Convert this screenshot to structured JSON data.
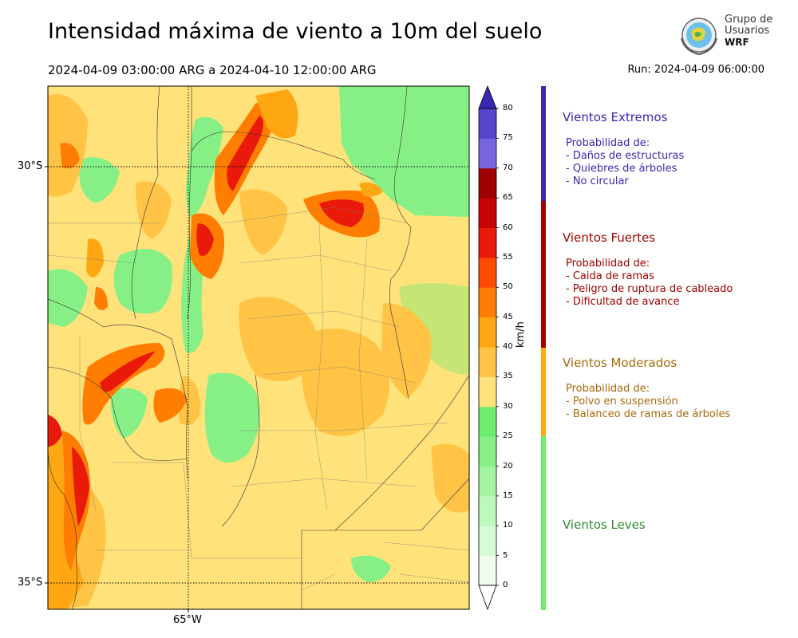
{
  "title": "Intensidad máxima de viento a 10m del suelo",
  "period": "2024-04-09 03:00:00 ARG  a  2024-04-10 12:00:00 ARG",
  "run": "Run: 2024-04-09 06:00:00",
  "logo": {
    "line1": "Grupo de",
    "line2": "Usuarios",
    "line3": "WRF"
  },
  "map": {
    "lat_labels": [
      "30°S",
      "35°S"
    ],
    "lon_labels": [
      "65°W"
    ]
  },
  "colorbar": {
    "unit": "km/h",
    "ticks": [
      "0",
      "5",
      "10",
      "15",
      "20",
      "25",
      "30",
      "35",
      "40",
      "45",
      "50",
      "55",
      "60",
      "65",
      "70",
      "75",
      "80"
    ],
    "colors": [
      "#eefdee",
      "#d6fcd6",
      "#bff8bf",
      "#a2f4a2",
      "#86f086",
      "#6ded6d",
      "#ffe27a",
      "#ffc445",
      "#ffa713",
      "#ff7e02",
      "#ff4a02",
      "#e91a0a",
      "#c70303",
      "#a10000",
      "#7665dd",
      "#5546cc",
      "#4130bb"
    ],
    "top_color": "#3a28b0"
  },
  "categories": [
    {
      "title": "Vientos Extremos",
      "color": "#3a28b0",
      "text_color": "#3a28b0",
      "lines": [
        "Probabilidad de:",
        "- Daños de estructuras",
        "- Quiebres de árboles",
        "- No circular"
      ]
    },
    {
      "title": "Vientos Fuertes",
      "color": "#a10000",
      "text_color": "#a10000",
      "lines": [
        "Probabilidad de:",
        "- Caida de ramas",
        "- Peligro de ruptura de cableado",
        "- Dificultad de avance"
      ]
    },
    {
      "title": "Vientos Moderados",
      "color": "#ffa713",
      "text_color": "#a86a0c",
      "lines": [
        "Probabilidad de:",
        "- Polvo en suspensión",
        "- Balanceo de ramas de árboles"
      ]
    },
    {
      "title": "Vientos Leves",
      "color": "#6ded6d",
      "text_color": "#2e8a2e",
      "lines": []
    }
  ]
}
